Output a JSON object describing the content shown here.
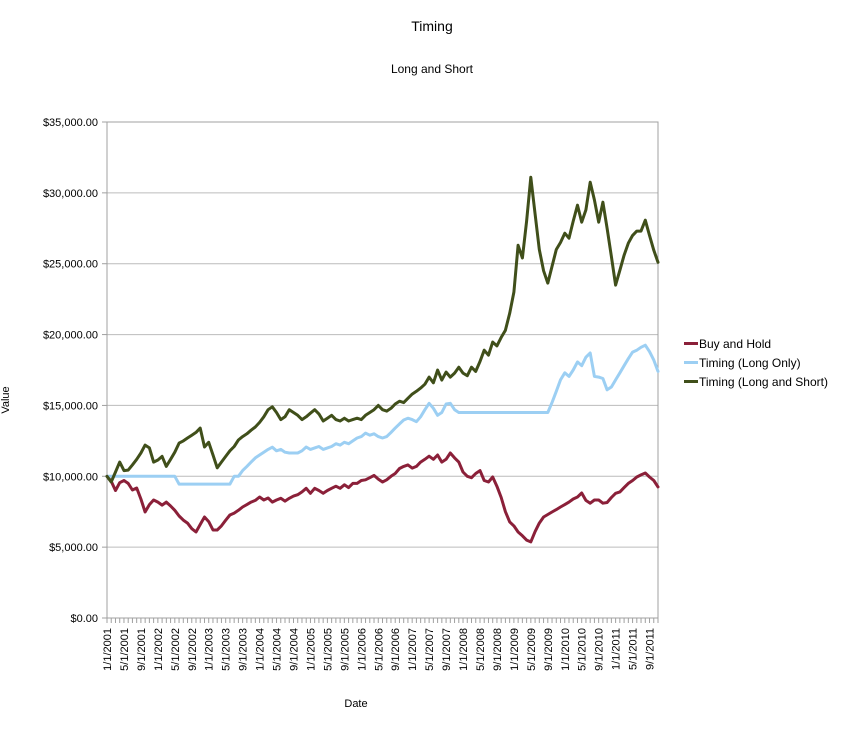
{
  "chart_data": {
    "type": "line",
    "title": "Timing",
    "subtitle": "Long and Short",
    "xlabel": "Date",
    "ylabel": "Value",
    "ylim": [
      0,
      35000
    ],
    "y_tick_step": 5000,
    "grid": true,
    "legend_position": "right",
    "y_tick_labels": [
      "$0.00",
      "$5,000.00",
      "$10,000.00",
      "$15,000.00",
      "$20,000.00",
      "$25,000.00",
      "$30,000.00",
      "$35,000.00"
    ],
    "x_tick_labels": [
      "1/1/2001",
      "5/1/2001",
      "9/1/2001",
      "1/1/2002",
      "5/1/2002",
      "9/1/2002",
      "1/1/2003",
      "5/1/2003",
      "9/1/2003",
      "1/1/2004",
      "5/1/2004",
      "9/1/2004",
      "1/1/2005",
      "5/1/2005",
      "9/1/2005",
      "1/1/2006",
      "5/1/2006",
      "9/1/2006",
      "1/1/2007",
      "5/1/2007",
      "9/1/2007",
      "1/1/2008",
      "5/1/2008",
      "9/1/2008",
      "1/1/2009",
      "5/1/2009",
      "9/1/2009",
      "1/1/2010",
      "5/1/2010",
      "9/1/2010",
      "1/1/2011",
      "5/1/2011",
      "9/1/2011"
    ],
    "x_points_per_label": 4,
    "x_frequency": "monthly, Jan 2001 - Nov 2011",
    "series": [
      {
        "name": "Buy and Hold",
        "color": "#8b2039",
        "values": [
          10000,
          9650,
          9000,
          9550,
          9700,
          9500,
          9030,
          9170,
          8400,
          7480,
          8000,
          8330,
          8180,
          7970,
          8180,
          7900,
          7600,
          7200,
          6910,
          6700,
          6300,
          6070,
          6600,
          7130,
          6800,
          6210,
          6210,
          6500,
          6900,
          7270,
          7400,
          7600,
          7830,
          8000,
          8180,
          8300,
          8540,
          8330,
          8470,
          8180,
          8330,
          8450,
          8250,
          8450,
          8600,
          8700,
          8900,
          9150,
          8800,
          9150,
          9000,
          8800,
          9000,
          9150,
          9300,
          9150,
          9400,
          9200,
          9500,
          9500,
          9700,
          9750,
          9900,
          10060,
          9800,
          9600,
          9750,
          10000,
          10200,
          10550,
          10700,
          10800,
          10580,
          10700,
          11000,
          11200,
          11420,
          11200,
          11500,
          11000,
          11200,
          11640,
          11300,
          11000,
          10300,
          10000,
          9900,
          10200,
          10400,
          9700,
          9600,
          9950,
          9300,
          8500,
          7500,
          6780,
          6500,
          6070,
          5800,
          5500,
          5370,
          6100,
          6700,
          7130,
          7300,
          7480,
          7650,
          7830,
          8000,
          8180,
          8400,
          8540,
          8820,
          8300,
          8100,
          8330,
          8330,
          8100,
          8150,
          8500,
          8800,
          8900,
          9200,
          9500,
          9700,
          9950,
          10100,
          10230,
          9950,
          9700,
          9250
        ]
      },
      {
        "name": "Timing (Long Only)",
        "color": "#9ccff3",
        "values": [
          10000,
          10000,
          10000,
          10000,
          10000,
          10000,
          10000,
          10000,
          10000,
          10000,
          10000,
          10000,
          10000,
          10000,
          10000,
          10000,
          10000,
          9450,
          9450,
          9450,
          9450,
          9450,
          9450,
          9450,
          9450,
          9450,
          9450,
          9450,
          9450,
          9450,
          10000,
          10000,
          10400,
          10700,
          11000,
          11300,
          11500,
          11700,
          11900,
          12050,
          11800,
          11900,
          11700,
          11640,
          11640,
          11640,
          11800,
          12070,
          11900,
          12000,
          12100,
          11900,
          12000,
          12100,
          12300,
          12200,
          12400,
          12300,
          12500,
          12700,
          12800,
          13050,
          12900,
          13000,
          12800,
          12700,
          12800,
          13100,
          13400,
          13700,
          13970,
          14100,
          14000,
          13850,
          14200,
          14700,
          15150,
          14800,
          14300,
          14500,
          15100,
          15150,
          14700,
          14500,
          14500,
          14500,
          14500,
          14500,
          14500,
          14500,
          14500,
          14500,
          14500,
          14500,
          14500,
          14500,
          14500,
          14500,
          14500,
          14500,
          14500,
          14500,
          14500,
          14500,
          14500,
          15200,
          16000,
          16800,
          17300,
          17050,
          17500,
          18070,
          17800,
          18400,
          18700,
          17050,
          17000,
          16900,
          16100,
          16300,
          16800,
          17300,
          17800,
          18300,
          18760,
          18900,
          19100,
          19250,
          18800,
          18200,
          17400
        ]
      },
      {
        "name": "Timing (Long and Short)",
        "color": "#404f1a",
        "values": [
          10000,
          9600,
          10300,
          11000,
          10400,
          10440,
          10800,
          11200,
          11640,
          12200,
          12000,
          11000,
          11150,
          11400,
          10700,
          11200,
          11700,
          12340,
          12500,
          12700,
          12900,
          13100,
          13400,
          12070,
          12400,
          11500,
          10600,
          11000,
          11400,
          11800,
          12100,
          12560,
          12800,
          13000,
          13250,
          13475,
          13800,
          14200,
          14700,
          14900,
          14500,
          14000,
          14200,
          14700,
          14500,
          14300,
          14000,
          14200,
          14450,
          14700,
          14400,
          13900,
          14100,
          14300,
          14000,
          13900,
          14100,
          13900,
          14000,
          14100,
          14000,
          14300,
          14500,
          14700,
          15000,
          14700,
          14600,
          14800,
          15100,
          15300,
          15200,
          15500,
          15800,
          16000,
          16220,
          16500,
          17000,
          16600,
          17490,
          16790,
          17350,
          17000,
          17280,
          17700,
          17280,
          17100,
          17700,
          17400,
          18100,
          18900,
          18550,
          19470,
          19200,
          19800,
          20300,
          21500,
          23000,
          26300,
          25400,
          28000,
          31100,
          28500,
          26000,
          24500,
          23630,
          24800,
          26000,
          26500,
          27150,
          26800,
          28000,
          29130,
          27930,
          28800,
          30750,
          29500,
          27930,
          29340,
          27500,
          25500,
          23490,
          24540,
          25600,
          26450,
          27000,
          27300,
          27300,
          28070,
          27000,
          25950,
          25100
        ]
      }
    ]
  }
}
